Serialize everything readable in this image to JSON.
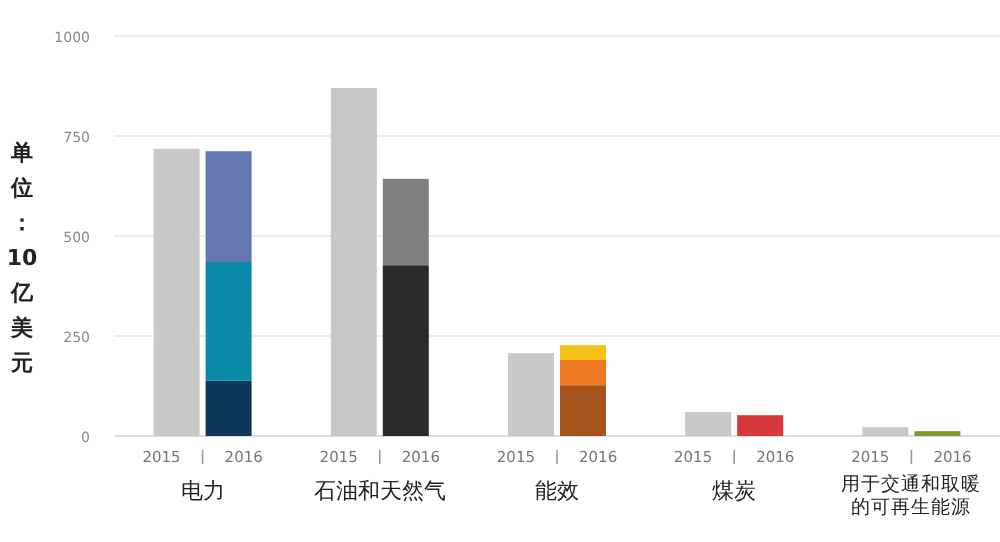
{
  "chart_data": {
    "type": "bar",
    "stacked": true,
    "ylabel": "单位：10亿美元",
    "categories": [
      "2015",
      "2016",
      "2015",
      "2016",
      "2015",
      "2016",
      "2015",
      "2016",
      "2015",
      "2016"
    ],
    "series": [
      {
        "colors": [
          "#c8c8c8",
          "#0d3658",
          "#c8c8c8",
          "#2b2b2b",
          "#c8c8c8",
          "#a4531d",
          "#c8c8c8",
          "#d8373a",
          "#c8c8c8",
          "#7a9a2c"
        ],
        "values": [
          718,
          138,
          870,
          427,
          207,
          127,
          60,
          52,
          22,
          12
        ]
      },
      {
        "colors": [
          null,
          "#0a8aa8",
          null,
          "#808080",
          null,
          "#f07a24",
          null,
          null,
          null,
          null
        ],
        "values": [
          null,
          297,
          null,
          216,
          null,
          63,
          null,
          null,
          null,
          null
        ]
      },
      {
        "colors": [
          null,
          "#6676b0",
          null,
          null,
          null,
          "#f6c11a",
          null,
          null,
          null,
          null
        ],
        "values": [
          null,
          277,
          null,
          null,
          null,
          37,
          null,
          null,
          null,
          null
        ]
      }
    ],
    "annotations": [
      "电力",
      "石油和天然气",
      "能效",
      "煤炭",
      "用于交通和取暖的可再生能源"
    ],
    "ylim": [
      0,
      1000
    ],
    "yticks": [
      0,
      250,
      500,
      750,
      1000
    ],
    "grid": "y"
  }
}
